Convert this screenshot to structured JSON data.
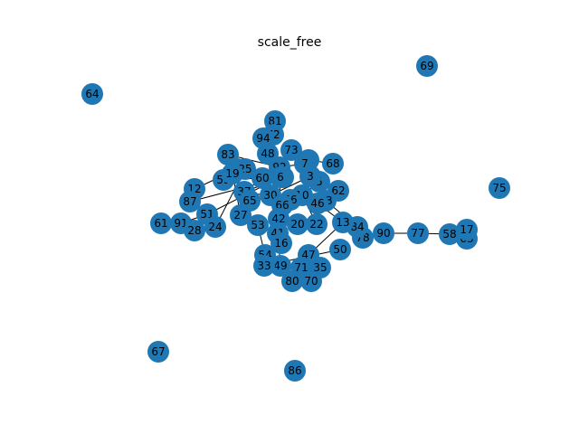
{
  "title": "scale_free",
  "colors": {
    "node": "#1f77b4",
    "edge": "#000000",
    "label": "#000000",
    "background": "#ffffff"
  },
  "graph": {
    "type": "network",
    "nodes": [
      "69",
      "64",
      "75",
      "67",
      "86",
      "81",
      "72",
      "94",
      "73",
      "48",
      "4",
      "68",
      "83",
      "92",
      "89",
      "25",
      "55",
      "19",
      "12",
      "60",
      "8",
      "87",
      "62",
      "37",
      "51",
      "61",
      "91",
      "28",
      "24",
      "7",
      "6",
      "5",
      "10",
      "30",
      "23",
      "65",
      "56",
      "66",
      "46",
      "42",
      "20",
      "22",
      "63",
      "58",
      "17",
      "77",
      "90",
      "78",
      "84",
      "13",
      "41",
      "16",
      "54",
      "47",
      "71",
      "35",
      "80",
      "70",
      "49",
      "53",
      "33",
      "50",
      "27",
      "3"
    ],
    "edges": [
      [
        "51",
        "91"
      ],
      [
        "24",
        "25"
      ],
      [
        "90",
        "77"
      ],
      [
        "77",
        "58"
      ],
      [
        "58",
        "63"
      ],
      [
        "4",
        "68"
      ],
      [
        "73",
        "4"
      ],
      [
        "81",
        "72"
      ],
      [
        "72",
        "94"
      ],
      [
        "94",
        "48"
      ],
      [
        "48",
        "92"
      ],
      [
        "83",
        "92"
      ],
      [
        "12",
        "89"
      ],
      [
        "89",
        "25"
      ],
      [
        "55",
        "60"
      ],
      [
        "60",
        "8"
      ],
      [
        "92",
        "8"
      ],
      [
        "8",
        "87"
      ],
      [
        "8",
        "37"
      ],
      [
        "37",
        "65"
      ],
      [
        "51",
        "6"
      ],
      [
        "51",
        "28"
      ],
      [
        "61",
        "91"
      ],
      [
        "28",
        "24"
      ],
      [
        "37",
        "56"
      ],
      [
        "56",
        "66"
      ],
      [
        "6",
        "42"
      ],
      [
        "42",
        "20"
      ],
      [
        "20",
        "22"
      ],
      [
        "22",
        "46"
      ],
      [
        "46",
        "23"
      ],
      [
        "23",
        "84"
      ],
      [
        "84",
        "78"
      ],
      [
        "78",
        "90"
      ],
      [
        "62",
        "5"
      ],
      [
        "5",
        "10"
      ],
      [
        "10",
        "22"
      ],
      [
        "56",
        "30"
      ],
      [
        "30",
        "66"
      ],
      [
        "66",
        "46"
      ],
      [
        "42",
        "41"
      ],
      [
        "41",
        "16"
      ],
      [
        "16",
        "54"
      ],
      [
        "54",
        "33"
      ],
      [
        "41",
        "49"
      ],
      [
        "49",
        "71"
      ],
      [
        "71",
        "35"
      ],
      [
        "35",
        "47"
      ],
      [
        "47",
        "13"
      ],
      [
        "13",
        "46"
      ],
      [
        "71",
        "80"
      ],
      [
        "80",
        "70"
      ],
      [
        "33",
        "50"
      ],
      [
        "30",
        "3"
      ],
      [
        "3",
        "7"
      ],
      [
        "7",
        "92"
      ],
      [
        "60",
        "19"
      ],
      [
        "19",
        "27"
      ],
      [
        "27",
        "65"
      ],
      [
        "53",
        "54"
      ]
    ]
  }
}
